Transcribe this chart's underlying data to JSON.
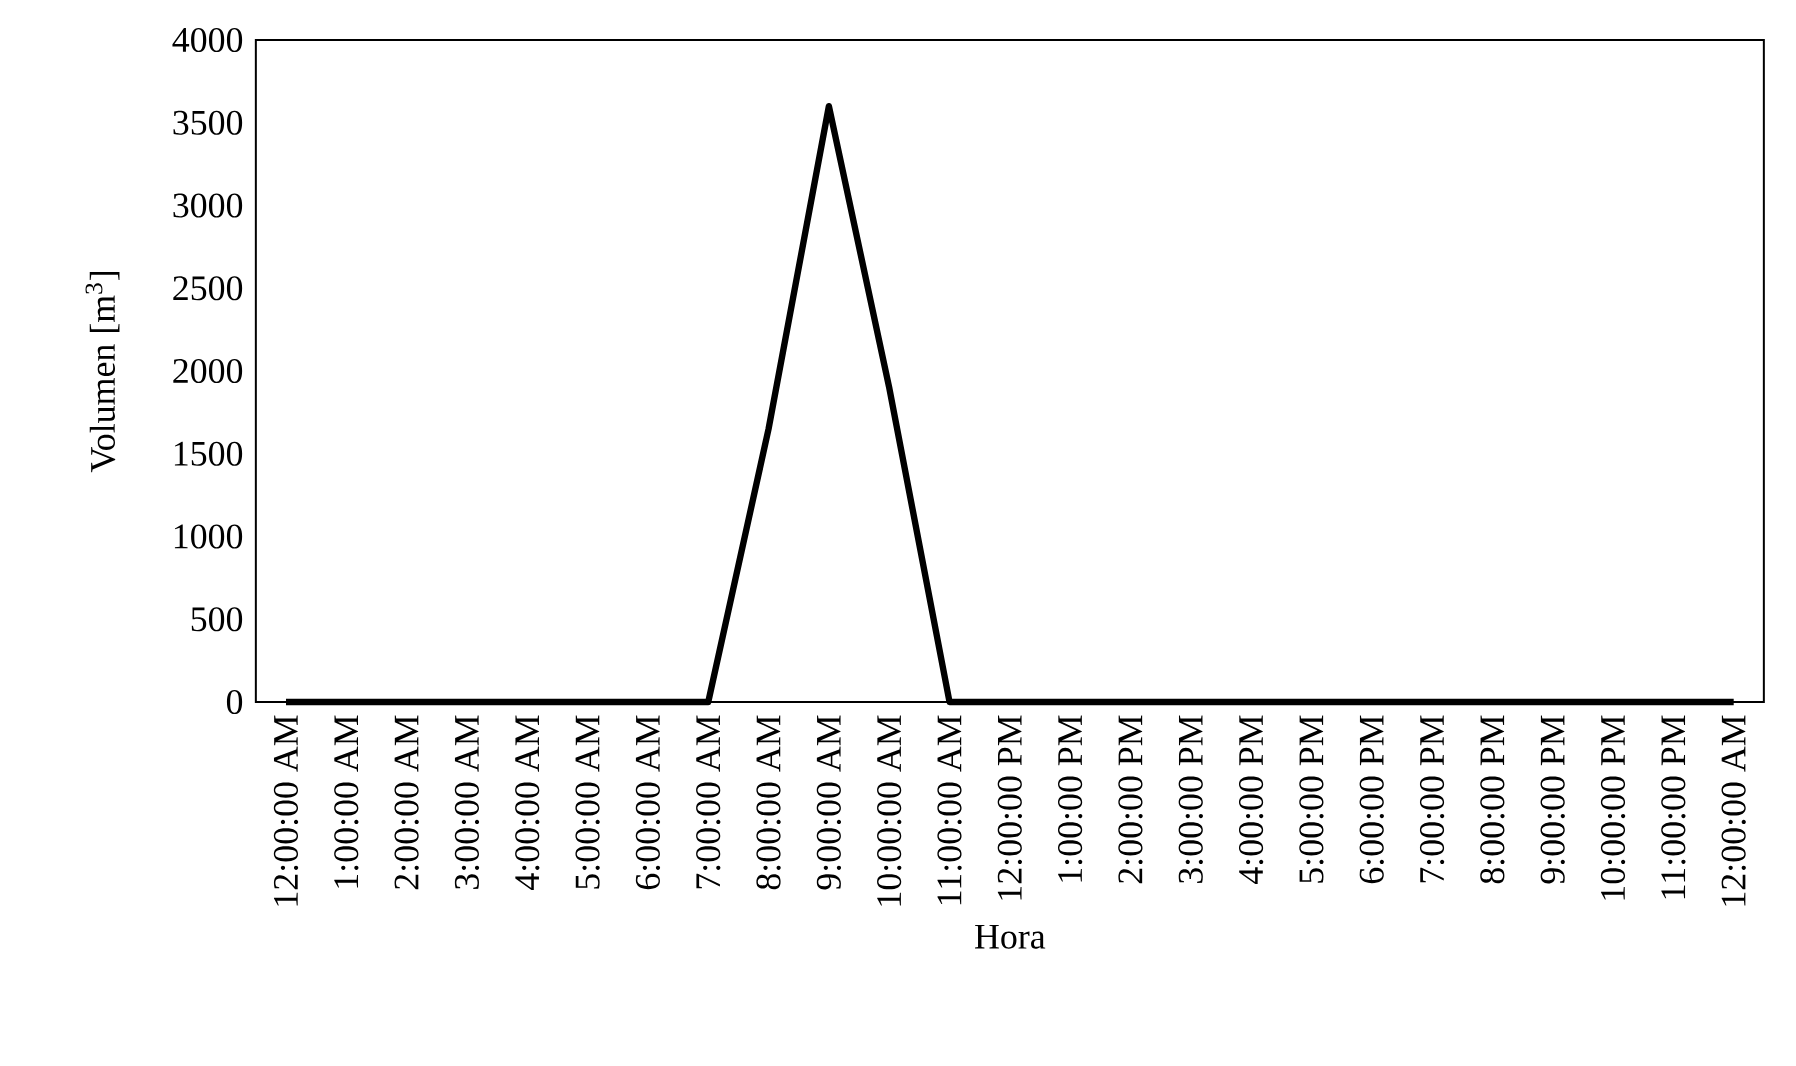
{
  "chart_data": {
    "type": "line",
    "xlabel": "Hora",
    "ylabel": "Volumen [m$^{3}$]",
    "categories": [
      "12:00:00 AM",
      "1:00:00 AM",
      "2:00:00 AM",
      "3:00:00 AM",
      "4:00:00 AM",
      "5:00:00 AM",
      "6:00:00 AM",
      "7:00:00 AM",
      "8:00:00 AM",
      "9:00:00 AM",
      "10:00:00 AM",
      "11:00:00 AM",
      "12:00:00 PM",
      "1:00:00 PM",
      "2:00:00 PM",
      "3:00:00 PM",
      "4:00:00 PM",
      "5:00:00 PM",
      "6:00:00 PM",
      "7:00:00 PM",
      "8:00:00 PM",
      "9:00:00 PM",
      "10:00:00 PM",
      "11:00:00 PM",
      "12:00:00 AM"
    ],
    "series": [
      {
        "color": "#000000",
        "values": [
          0,
          0,
          0,
          0,
          0,
          0,
          0,
          0,
          1650,
          3600,
          1900,
          0,
          0,
          0,
          0,
          0,
          0,
          0,
          0,
          0,
          0,
          0,
          0,
          0,
          0
        ]
      }
    ],
    "ylim": [
      0,
      4000
    ],
    "yticks": [
      0,
      500,
      1000,
      1500,
      2000,
      2500,
      3000,
      3500,
      4000
    ],
    "grid": false,
    "marker": "none",
    "line_style": "solid"
  }
}
